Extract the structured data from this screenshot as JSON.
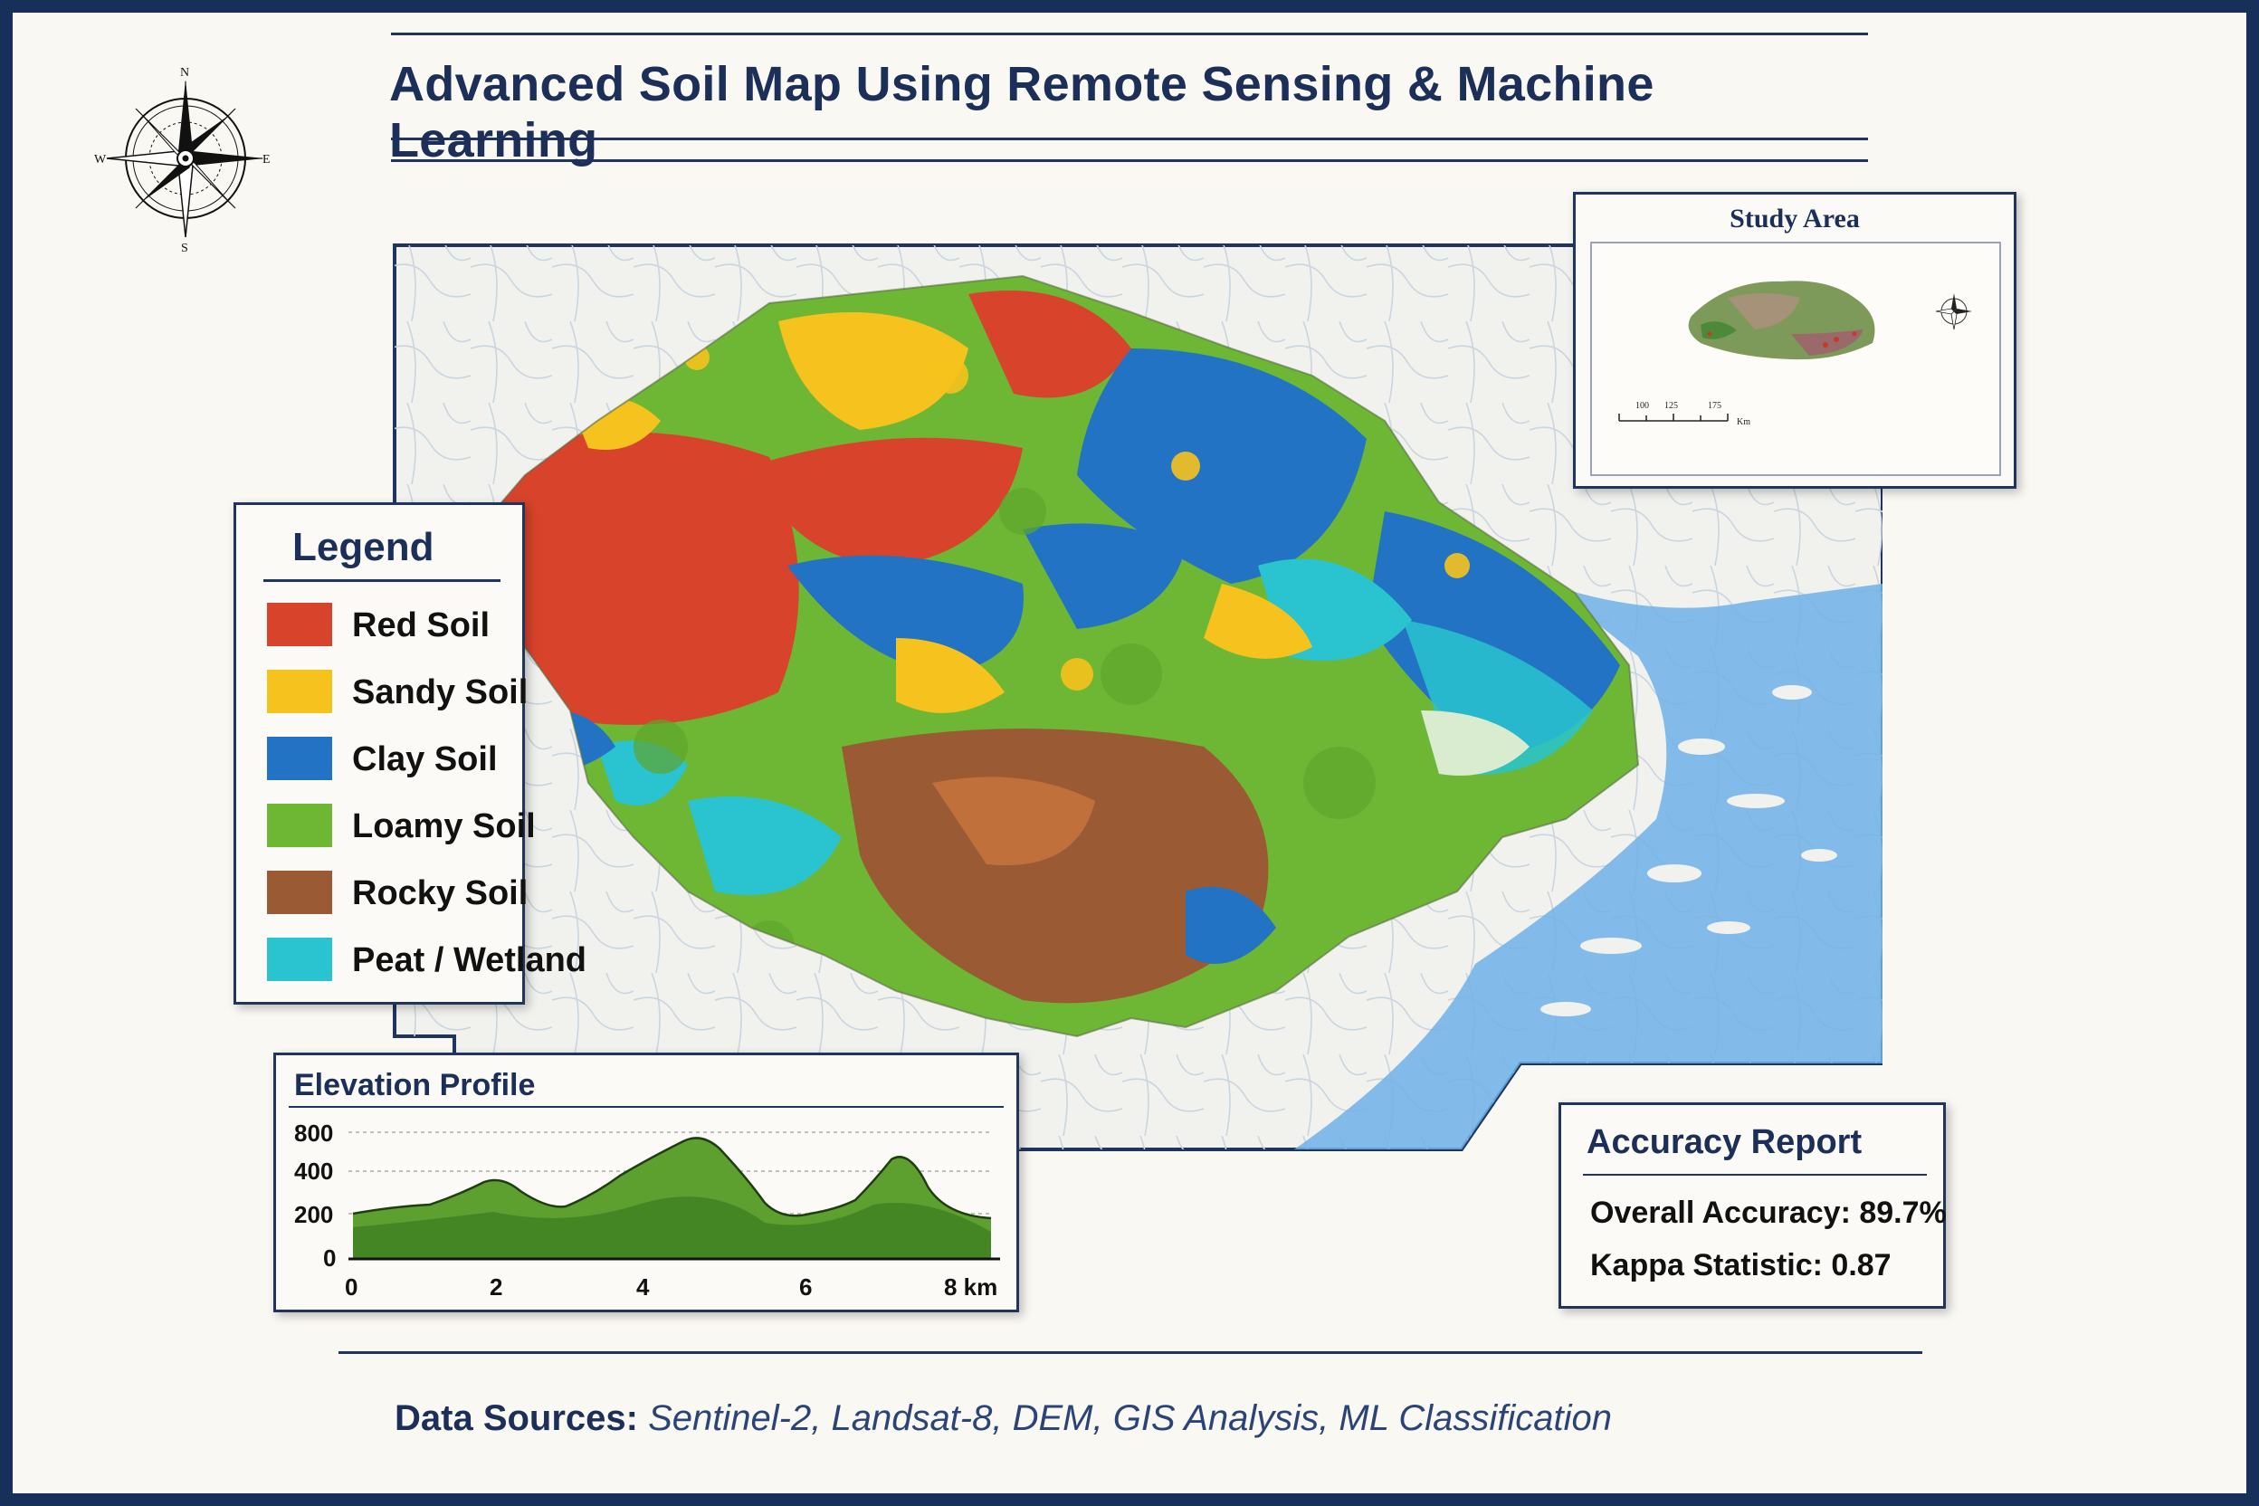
{
  "title": "Advanced Soil Map Using Remote Sensing & Machine Learning",
  "compass": {
    "n": "N",
    "s": "S",
    "e": "E",
    "w": "W"
  },
  "legend": {
    "title": "Legend",
    "items": [
      {
        "label": "Red Soil",
        "color": "#d8432b"
      },
      {
        "label": "Sandy Soil",
        "color": "#f6c21d"
      },
      {
        "label": "Clay Soil",
        "color": "#2273c4"
      },
      {
        "label": "Loamy Soil",
        "color": "#6db735"
      },
      {
        "label": "Rocky Soil",
        "color": "#9a5a34"
      },
      {
        "label": "Peat / Wetland",
        "color": "#29c4cf"
      }
    ]
  },
  "study_area": {
    "title": "Study Area",
    "scale_ticks": [
      "100",
      "125",
      "175"
    ],
    "scale_unit": "Km"
  },
  "elevation_profile": {
    "title": "Elevation Profile",
    "y_ticks": [
      "800",
      "400",
      "200",
      "0"
    ],
    "x_ticks": [
      "0",
      "2",
      "4",
      "6",
      "8 km"
    ]
  },
  "accuracy_report": {
    "title": "Accuracy Report",
    "overall_label": "Overall Accuracy:",
    "overall_value": "89.7%",
    "kappa_label": "Kappa Statistic:",
    "kappa_value": "0.87"
  },
  "data_sources": {
    "label": "Data Sources:",
    "value": "Sentinel-2, Landsat-8, DEM, GIS Analysis, ML Classification"
  },
  "colors": {
    "frame": "#17305a",
    "water": "#6fb1e8",
    "land": "#f1f1ee"
  }
}
